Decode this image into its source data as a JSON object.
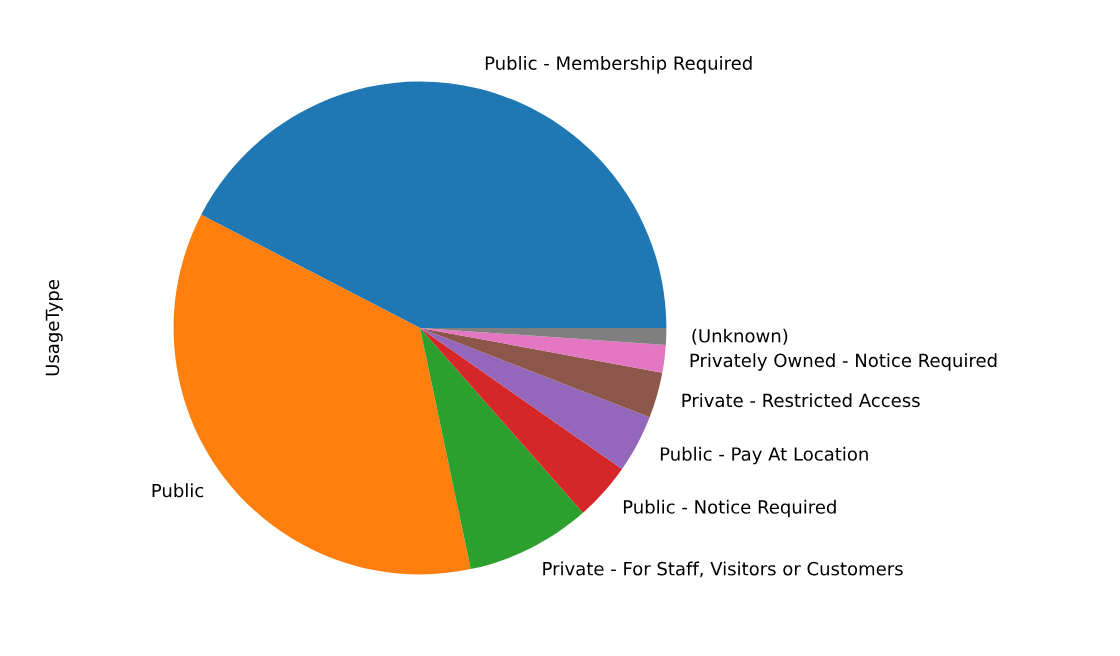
{
  "chart_data": {
    "type": "pie",
    "ylabel": "UsageType",
    "categories": [
      "Public - Membership Required",
      "Public",
      "Private - For Staff, Visitors or Customers",
      "Public - Notice Required",
      "Public - Pay At Location",
      "Private - Restricted Access",
      "Privately Owned - Notice Required",
      "(Unknown)"
    ],
    "values": [
      42.4,
      35.9,
      8.2,
      3.8,
      3.8,
      3.0,
      1.8,
      1.1
    ],
    "colors": [
      "#1f77b4",
      "#ff7f0e",
      "#2ca02c",
      "#d62728",
      "#9467bd",
      "#8c564b",
      "#e377c2",
      "#7f7f7f"
    ],
    "legend": false
  }
}
